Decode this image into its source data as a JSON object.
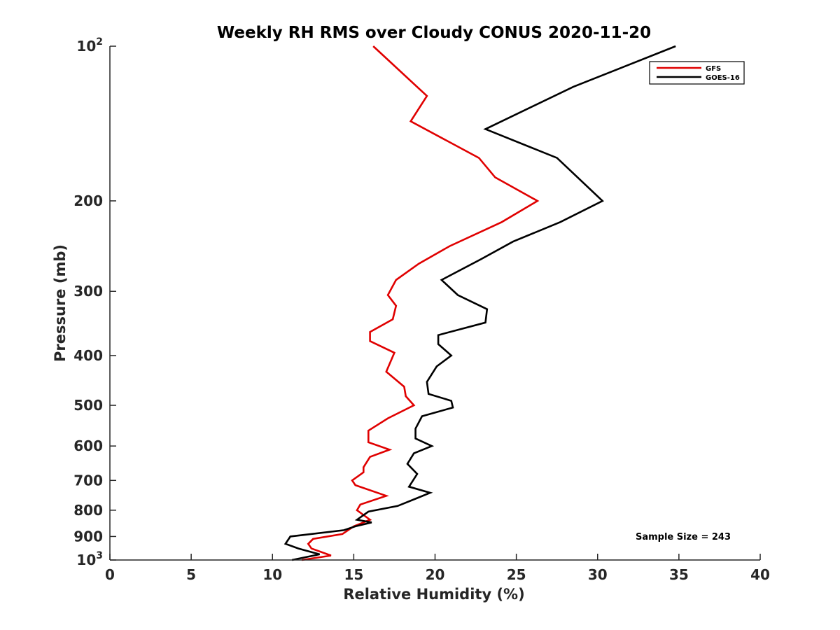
{
  "chart_data": {
    "type": "line",
    "title": "Weekly RH RMS over Cloudy CONUS 2020-11-20",
    "xlabel": "Relative Humidity (%)",
    "ylabel": "Pressure (mb)",
    "xlim": [
      0,
      40
    ],
    "ylim": [
      100,
      1000
    ],
    "y_scale": "log",
    "y_reversed": true,
    "grid": false,
    "legend_position": "top-right",
    "x_ticks": [
      0,
      5,
      10,
      15,
      20,
      25,
      30,
      35,
      40
    ],
    "y_ticks": [
      {
        "value": 100,
        "label": "10",
        "sup": "2"
      },
      {
        "value": 200,
        "label": "200",
        "sup": ""
      },
      {
        "value": 300,
        "label": "300",
        "sup": ""
      },
      {
        "value": 400,
        "label": "400",
        "sup": ""
      },
      {
        "value": 500,
        "label": "500",
        "sup": ""
      },
      {
        "value": 600,
        "label": "600",
        "sup": ""
      },
      {
        "value": 700,
        "label": "700",
        "sup": ""
      },
      {
        "value": 800,
        "label": "800",
        "sup": ""
      },
      {
        "value": 900,
        "label": "900",
        "sup": ""
      },
      {
        "value": 1000,
        "label": "10",
        "sup": "3"
      }
    ],
    "series": [
      {
        "name": "GFS",
        "color": "#e00000",
        "points": [
          [
            16.2,
            100
          ],
          [
            19.5,
            125
          ],
          [
            18.5,
            140
          ],
          [
            22.7,
            165
          ],
          [
            23.7,
            180
          ],
          [
            26.3,
            200
          ],
          [
            24.1,
            220
          ],
          [
            20.9,
            245
          ],
          [
            19.0,
            265
          ],
          [
            17.6,
            285
          ],
          [
            17.1,
            305
          ],
          [
            17.6,
            320
          ],
          [
            17.4,
            340
          ],
          [
            16.0,
            360
          ],
          [
            16.0,
            375
          ],
          [
            17.5,
            395
          ],
          [
            17.0,
            430
          ],
          [
            18.1,
            460
          ],
          [
            18.2,
            480
          ],
          [
            18.7,
            500
          ],
          [
            17.1,
            530
          ],
          [
            15.9,
            560
          ],
          [
            15.9,
            590
          ],
          [
            17.2,
            610
          ],
          [
            16.0,
            630
          ],
          [
            15.6,
            660
          ],
          [
            15.6,
            675
          ],
          [
            14.9,
            700
          ],
          [
            15.1,
            715
          ],
          [
            17.0,
            750
          ],
          [
            15.4,
            780
          ],
          [
            15.2,
            800
          ],
          [
            16.0,
            835
          ],
          [
            15.0,
            860
          ],
          [
            14.3,
            890
          ],
          [
            12.5,
            910
          ],
          [
            12.2,
            930
          ],
          [
            12.4,
            950
          ],
          [
            13.6,
            980
          ],
          [
            11.8,
            1000
          ]
        ]
      },
      {
        "name": "GOES-16",
        "color": "#000000",
        "points": [
          [
            34.8,
            100
          ],
          [
            28.5,
            120
          ],
          [
            23.1,
            145
          ],
          [
            27.5,
            165
          ],
          [
            30.3,
            200
          ],
          [
            27.7,
            220
          ],
          [
            24.8,
            240
          ],
          [
            22.8,
            260
          ],
          [
            20.4,
            285
          ],
          [
            21.4,
            305
          ],
          [
            23.2,
            325
          ],
          [
            23.1,
            345
          ],
          [
            20.2,
            365
          ],
          [
            20.2,
            380
          ],
          [
            21.0,
            400
          ],
          [
            20.1,
            420
          ],
          [
            19.5,
            450
          ],
          [
            19.6,
            475
          ],
          [
            21.0,
            490
          ],
          [
            21.1,
            505
          ],
          [
            19.2,
            525
          ],
          [
            18.8,
            555
          ],
          [
            18.8,
            580
          ],
          [
            19.8,
            600
          ],
          [
            18.7,
            620
          ],
          [
            18.3,
            650
          ],
          [
            18.9,
            680
          ],
          [
            18.4,
            720
          ],
          [
            19.7,
            740
          ],
          [
            18.8,
            760
          ],
          [
            17.7,
            785
          ],
          [
            15.9,
            805
          ],
          [
            15.2,
            835
          ],
          [
            16.1,
            845
          ],
          [
            15.1,
            860
          ],
          [
            14.4,
            875
          ],
          [
            11.1,
            900
          ],
          [
            10.8,
            930
          ],
          [
            11.6,
            950
          ],
          [
            12.9,
            975
          ],
          [
            11.2,
            1000
          ]
        ]
      }
    ],
    "annotation": "Sample Size = 243"
  }
}
